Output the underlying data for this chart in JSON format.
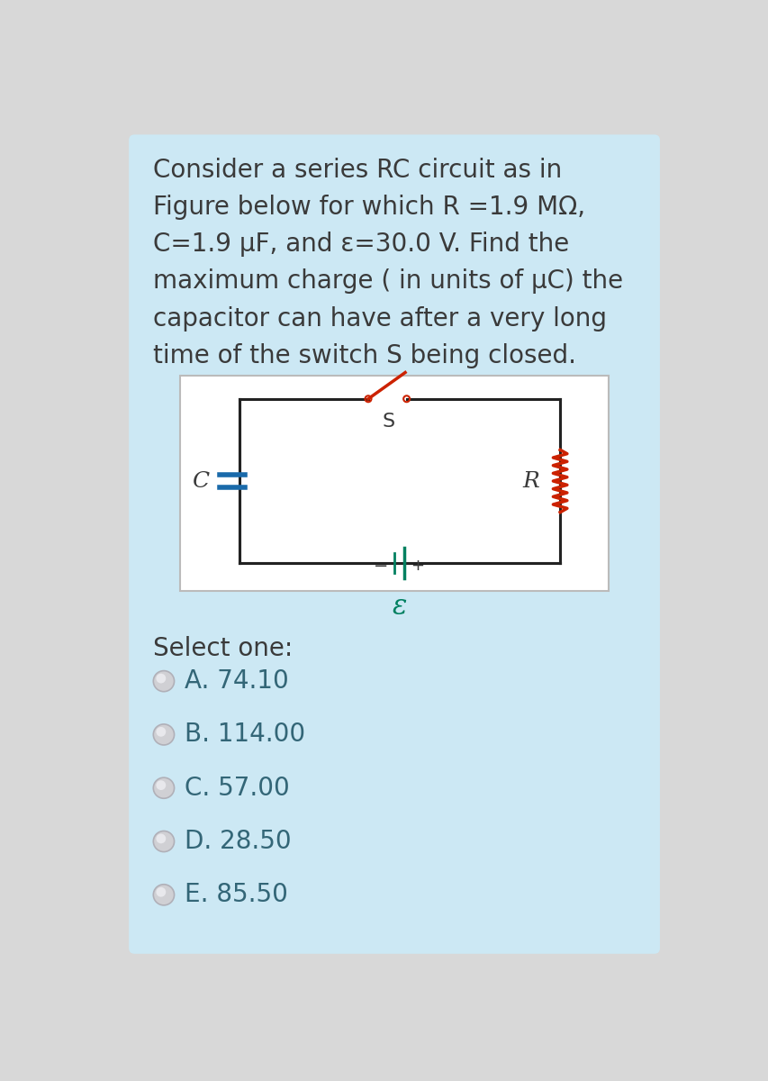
{
  "question_text": "Consider a series RC circuit as in\nFigure below for which R =1.9 MΩ,\nC=1.9 μF, and ε=30.0 V. Find the\nmaximum charge ( in units of μC) the\ncapacitor can have after a very long\ntime of the switch S being closed.",
  "select_one_label": "Select one:",
  "options": [
    "A. 74.10",
    "B. 114.00",
    "C. 57.00",
    "D. 28.50",
    "E. 85.50"
  ],
  "bg_color": "#cce8f4",
  "white_bg": "#ffffff",
  "outer_bg": "#d8d8d8",
  "text_color": "#3a3a3a",
  "option_text_color": "#336677",
  "circuit_line_color": "#222222",
  "resistor_color": "#cc2200",
  "capacitor_color": "#1a6aaa",
  "battery_color": "#008060",
  "switch_color": "#cc2200",
  "epsilon_color": "#008060",
  "select_color": "#336677"
}
